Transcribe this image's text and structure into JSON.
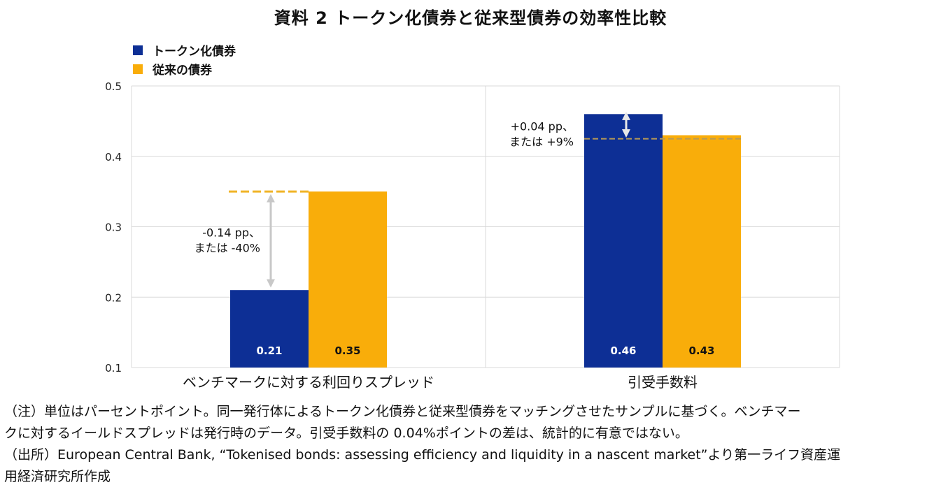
{
  "title": "資料 2  トークン化債券と従来型債券の効率性比較",
  "legend": [
    {
      "label": "トークン化債券",
      "color": "#0d2f95"
    },
    {
      "label": "従来の債券",
      "color": "#f9ad0a"
    }
  ],
  "chart_data": {
    "type": "bar",
    "categories": [
      "ベンチマークに対する利回りスプレッド",
      "引受手数料"
    ],
    "series": [
      {
        "name": "トークン化債券",
        "values": [
          0.21,
          0.46
        ],
        "color": "#0d2f95"
      },
      {
        "name": "従来の債券",
        "values": [
          0.35,
          0.43
        ],
        "color": "#f9ad0a"
      }
    ],
    "value_labels": [
      [
        "0.21",
        "0.35"
      ],
      [
        "0.46",
        "0.43"
      ]
    ],
    "ylim": [
      0.1,
      0.5
    ],
    "yticks": [
      "0.1",
      "0.2",
      "0.3",
      "0.4",
      "0.5"
    ],
    "grid": true,
    "legend_position": "top-left",
    "annotations": [
      {
        "category": 0,
        "from": 0.35,
        "to": 0.21,
        "text": [
          "-0.14 pp、",
          "または -40%"
        ]
      },
      {
        "category": 1,
        "from": 0.425,
        "to": 0.465,
        "text": [
          "+0.04 pp、",
          "または +9%"
        ]
      }
    ]
  },
  "notes": [
    "（注）単位はパーセントポイント。同一発行体によるトークン化債券と従来型債券をマッチングさせたサンプルに基づく。ベンチマー",
    "クに対するイールドスプレッドは発行時のデータ。引受手数料の 0.04%ポイントの差は、統計的に有意ではない。",
    "（出所）European Central Bank, “Tokenised bonds: assessing efficiency and liquidity in a nascent market”より第一ライフ資産運",
    "用経済研究所作成"
  ]
}
